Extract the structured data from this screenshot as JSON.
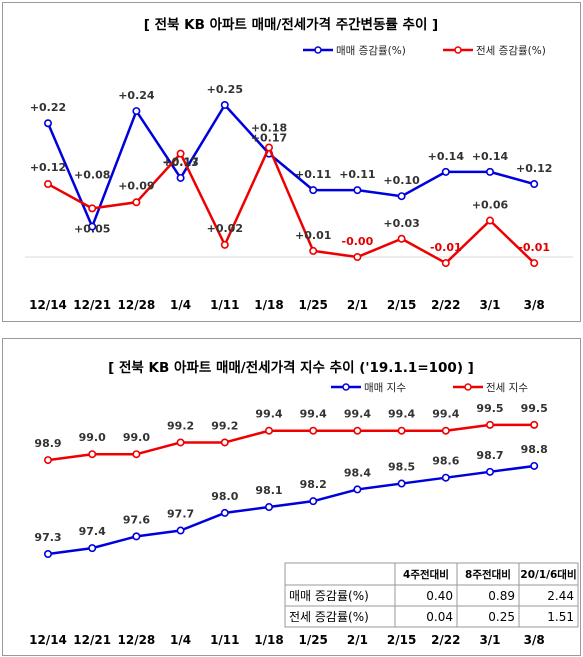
{
  "chart_data": [
    {
      "type": "line",
      "title": "[ 전북  KB 아파트 매매/전세가격 주간변동률 추이 ]",
      "categories": [
        "12/14",
        "12/21",
        "12/28",
        "1/4",
        "1/11",
        "1/18",
        "1/25",
        "2/1",
        "2/15",
        "2/22",
        "3/1",
        "3/8"
      ],
      "series": [
        {
          "name": "매매 증감률(%)",
          "color": "#0000dd",
          "values": [
            0.22,
            0.05,
            0.24,
            0.13,
            0.25,
            0.17,
            0.11,
            0.11,
            0.1,
            0.14,
            0.14,
            0.12
          ],
          "labels": [
            "+0.22",
            "+0.05",
            "+0.24",
            "+0.13",
            "+0.25",
            "+0.17",
            "+0.11",
            "+0.11",
            "+0.10",
            "+0.14",
            "+0.14",
            "+0.12"
          ]
        },
        {
          "name": "전세 증감률(%)",
          "color": "#ee0000",
          "values": [
            0.12,
            0.08,
            0.09,
            0.17,
            0.02,
            0.18,
            0.01,
            -0.0,
            0.03,
            -0.01,
            0.06,
            -0.01
          ],
          "labels": [
            "+0.12",
            "+0.08",
            "+0.09",
            "+0.17",
            "+0.02",
            "+0.18",
            "+0.01",
            "-0.00",
            "+0.03",
            "-0.01",
            "+0.06",
            "-0.01"
          ]
        }
      ],
      "ylim": [
        -0.03,
        0.28
      ],
      "legend": "top-right"
    },
    {
      "type": "line",
      "title": "[  전북  KB 아파트 매매/전세가격 지수 추이 ('19.1.1=100)  ]",
      "categories": [
        "12/14",
        "12/21",
        "12/28",
        "1/4",
        "1/11",
        "1/18",
        "1/25",
        "2/1",
        "2/15",
        "2/22",
        "3/1",
        "3/8"
      ],
      "series": [
        {
          "name": "매매 지수",
          "color": "#0000dd",
          "values": [
            97.3,
            97.4,
            97.6,
            97.7,
            98.0,
            98.1,
            98.2,
            98.4,
            98.5,
            98.6,
            98.7,
            98.8
          ]
        },
        {
          "name": "전세 지수",
          "color": "#ee0000",
          "values": [
            98.9,
            99.0,
            99.0,
            99.2,
            99.2,
            99.4,
            99.4,
            99.4,
            99.4,
            99.4,
            99.5,
            99.5
          ]
        }
      ],
      "ylim": [
        96.9,
        99.9
      ],
      "legend": "top-right",
      "table": {
        "columns": [
          "",
          "4주전대비",
          "8주전대비",
          "20/1/6대비"
        ],
        "rows": [
          [
            "매매 증감률(%)",
            "0.40",
            "0.89",
            "2.44"
          ],
          [
            "전세 증감률(%)",
            "0.04",
            "0.25",
            "1.51"
          ]
        ]
      }
    }
  ]
}
